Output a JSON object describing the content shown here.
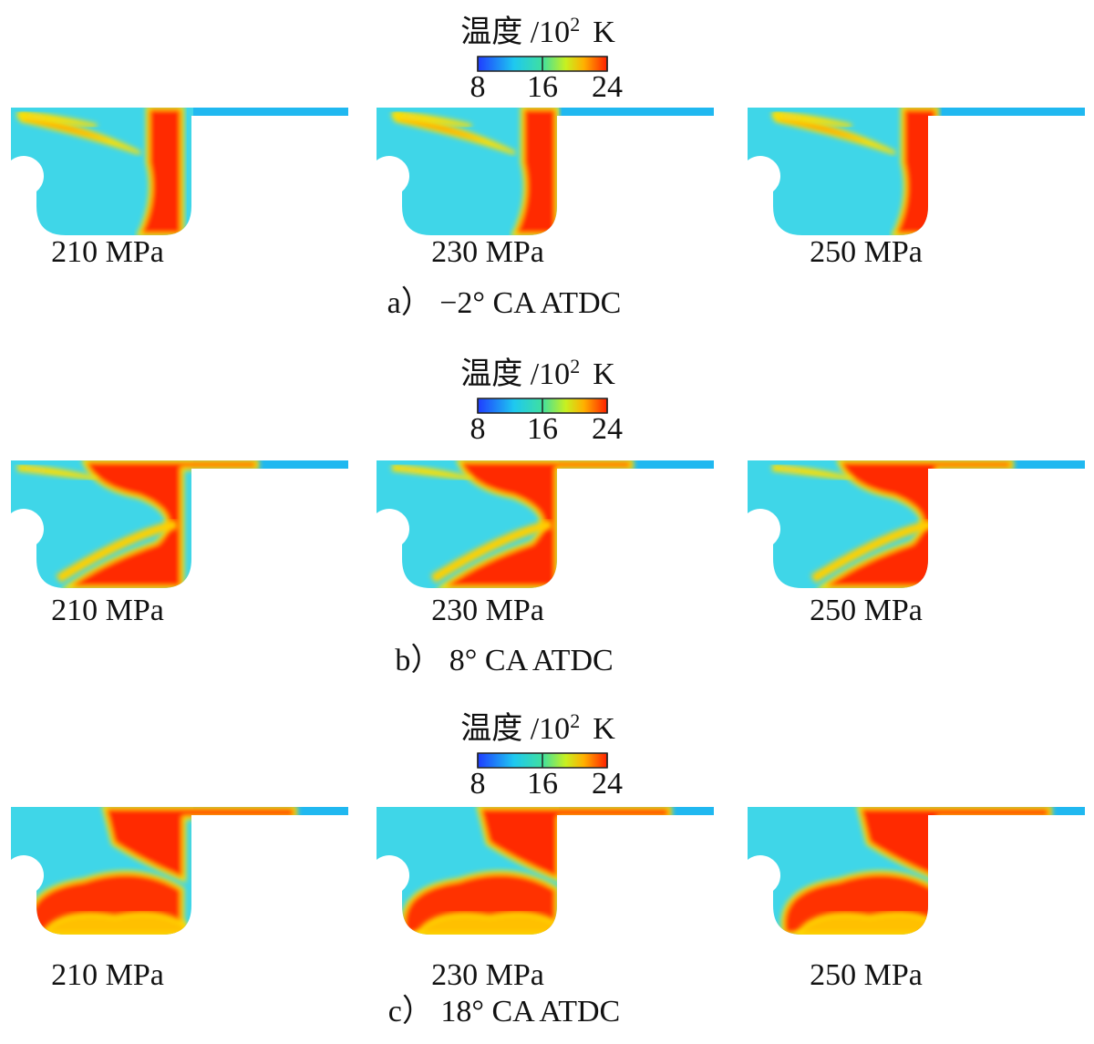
{
  "panels": [
    {
      "colorbar": {
        "title": "温度 /10",
        "title_sup": "2",
        "title_unit": "K",
        "ticks": [
          8,
          16,
          24
        ]
      },
      "plots": [
        {
          "label": "210 MPa"
        },
        {
          "label": "230 MPa"
        },
        {
          "label": "250 MPa"
        }
      ],
      "caption": "a） −2° CA ATDC"
    },
    {
      "colorbar": {
        "title": "温度 /10",
        "title_sup": "2",
        "title_unit": "K",
        "ticks": [
          8,
          16,
          24
        ]
      },
      "plots": [
        {
          "label": "210 MPa"
        },
        {
          "label": "230 MPa"
        },
        {
          "label": "250 MPa"
        }
      ],
      "caption": "b） 8° CA ATDC"
    },
    {
      "colorbar": {
        "title": "温度 /10",
        "title_sup": "2",
        "title_unit": "K",
        "ticks": [
          8,
          16,
          24
        ]
      },
      "plots": [
        {
          "label": "210 MPa"
        },
        {
          "label": "230 MPa"
        },
        {
          "label": "250 MPa"
        }
      ],
      "caption": "c） 18° CA ATDC"
    }
  ]
}
